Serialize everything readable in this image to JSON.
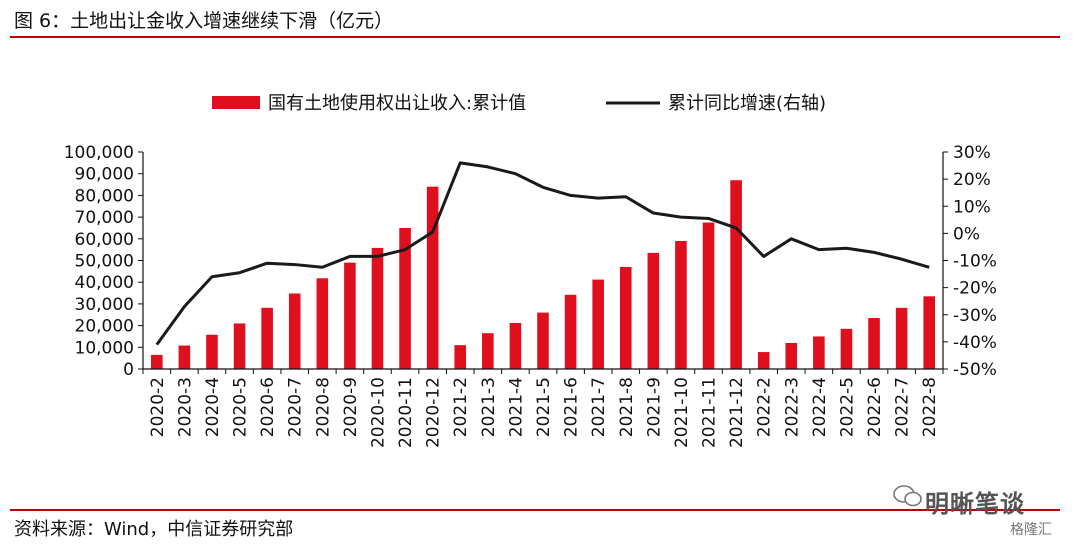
{
  "figure": {
    "title": "图 6：土地出让金收入增速继续下滑（亿元）",
    "source": "资料来源：Wind，中信证券研究部",
    "watermark": "明晰笔谈",
    "watermark_sub": "格隆汇"
  },
  "colors": {
    "bar": "#e00f1e",
    "line": "#1a1a1a",
    "rule": "#c00000"
  },
  "chart_data": {
    "type": "bar",
    "categories": [
      "2020-2",
      "2020-3",
      "2020-4",
      "2020-5",
      "2020-6",
      "2020-7",
      "2020-8",
      "2020-9",
      "2020-10",
      "2020-11",
      "2020-12",
      "2021-2",
      "2021-3",
      "2021-4",
      "2021-5",
      "2021-6",
      "2021-7",
      "2021-8",
      "2021-9",
      "2021-10",
      "2021-11",
      "2021-12",
      "2022-2",
      "2022-3",
      "2022-4",
      "2022-5",
      "2022-6",
      "2022-7",
      "2022-8"
    ],
    "series": [
      {
        "name": "国有土地使用权出让收入:累计值",
        "type": "bar",
        "axis": "left",
        "values": [
          6500,
          10800,
          15800,
          21000,
          28200,
          34800,
          41800,
          49000,
          55800,
          65000,
          84000,
          11000,
          16500,
          21200,
          26000,
          34200,
          41200,
          47000,
          53500,
          59000,
          67500,
          87000,
          7800,
          12000,
          15000,
          18500,
          23500,
          28200,
          33500
        ]
      },
      {
        "name": "累计同比增速(右轴)",
        "type": "line",
        "axis": "right",
        "values": [
          -41,
          -27,
          -16,
          -14.5,
          -11,
          -11.5,
          -12.5,
          -8.5,
          -8.5,
          -6,
          0.5,
          26,
          24.5,
          22,
          17,
          14,
          13,
          13.5,
          7.5,
          6,
          5.5,
          2,
          -8.5,
          -2,
          -6,
          -5.5,
          -7,
          -9.5,
          -12.5
        ]
      }
    ],
    "y_left": {
      "ticks": [
        "100,000",
        "90,000",
        "80,000",
        "70,000",
        "60,000",
        "50,000",
        "40,000",
        "30,000",
        "20,000",
        "10,000",
        "0"
      ],
      "range": [
        0,
        100000
      ]
    },
    "y_right": {
      "ticks": [
        "30%",
        "20%",
        "10%",
        "0%",
        "-10%",
        "-20%",
        "-30%",
        "-40%",
        "-50%"
      ],
      "range": [
        -50,
        30
      ]
    },
    "legend_placement": "top-center",
    "grid": false
  }
}
